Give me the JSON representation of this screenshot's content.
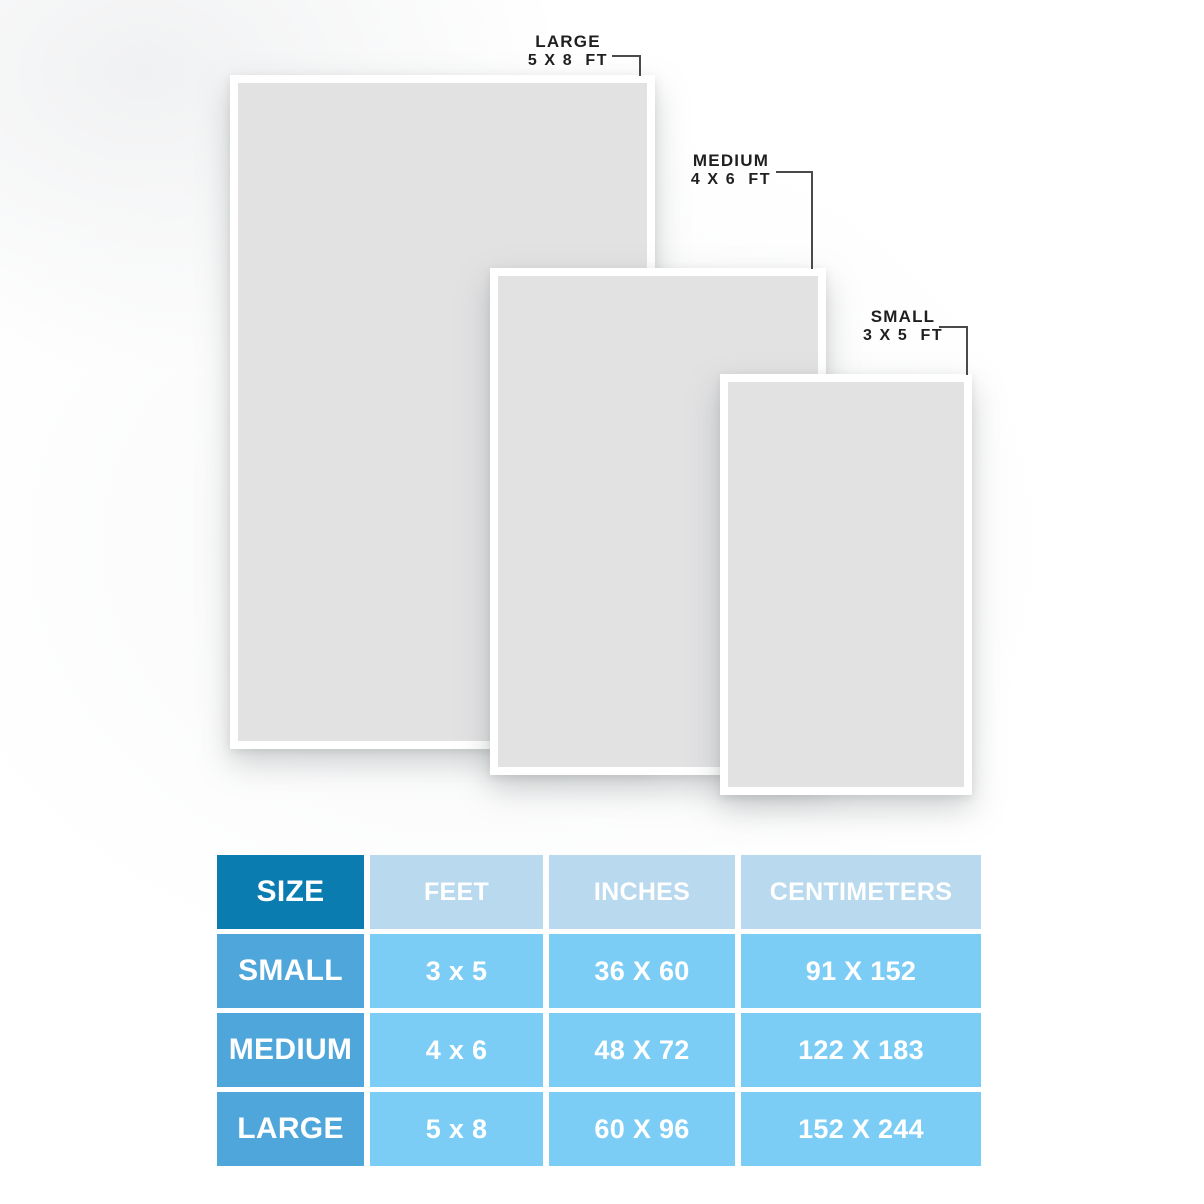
{
  "diagram": {
    "callouts": [
      {
        "name": "LARGE",
        "dims": "5 X 8  FT"
      },
      {
        "name": "MEDIUM",
        "dims": "4 X 6  FT"
      },
      {
        "name": "SMALL",
        "dims": "3 X 5  FT"
      }
    ]
  },
  "table": {
    "headers": {
      "size": "SIZE",
      "feet": "FEET",
      "inches": "INCHES",
      "centimeters": "CENTIMETERS"
    },
    "rows": [
      {
        "size": "SMALL",
        "feet": "3 x 5",
        "inches": "36 X 60",
        "centimeters": "91 X 152"
      },
      {
        "size": "MEDIUM",
        "feet": "4 x 6",
        "inches": "48 X 72",
        "centimeters": "122 X 183"
      },
      {
        "size": "LARGE",
        "feet": "5 x 8",
        "inches": "60 X 96",
        "centimeters": "152 X 244"
      }
    ]
  },
  "colors": {
    "header_primary_bg": "#0b7cb0",
    "header_light_bg": "#b9d9ee",
    "row_label_bg": "#4fa6da",
    "data_cell_bg": "#7ccdf5",
    "panel_fill": "#e2e2e3",
    "panel_frame": "#ffffff",
    "leader_line": "#4a4a4a",
    "text_light": "#ffffff",
    "text_dark": "#1f1f1f"
  }
}
